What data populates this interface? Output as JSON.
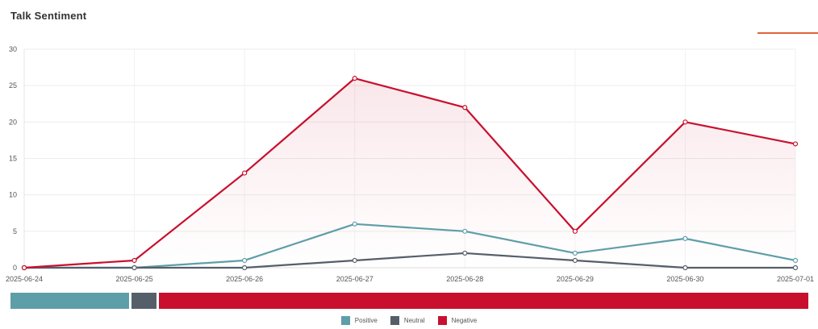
{
  "header": {
    "title": "Talk Sentiment"
  },
  "accent_color": "#e0633a",
  "chart_data": {
    "type": "line",
    "x": [
      "2025-06-24",
      "2025-06-25",
      "2025-06-26",
      "2025-06-27",
      "2025-06-28",
      "2025-06-29",
      "2025-06-30",
      "2025-07-01"
    ],
    "series": [
      {
        "name": "Positive",
        "color": "#5e9ea8",
        "values": [
          0,
          0,
          1,
          6,
          5,
          2,
          4,
          1
        ]
      },
      {
        "name": "Neutral",
        "color": "#555f6a",
        "values": [
          0,
          0,
          0,
          1,
          2,
          1,
          0,
          0
        ]
      },
      {
        "name": "Negative",
        "color": "#c8102e",
        "values": [
          0,
          1,
          13,
          26,
          22,
          5,
          20,
          17
        ],
        "area_fill": true
      }
    ],
    "ylim": [
      0,
      30
    ],
    "yticks": [
      0,
      5,
      10,
      15,
      20,
      25,
      30
    ],
    "grid": true,
    "legend_position": "bottom"
  },
  "distribution": [
    {
      "name": "Positive",
      "color": "#5e9ea8",
      "value": 19
    },
    {
      "name": "Neutral",
      "color": "#555f6a",
      "value": 4
    },
    {
      "name": "Negative",
      "color": "#c8102e",
      "value": 104
    }
  ],
  "legend": [
    {
      "label": "Positive",
      "color": "#5e9ea8"
    },
    {
      "label": "Neutral",
      "color": "#555f6a"
    },
    {
      "label": "Negative",
      "color": "#c8102e"
    }
  ]
}
